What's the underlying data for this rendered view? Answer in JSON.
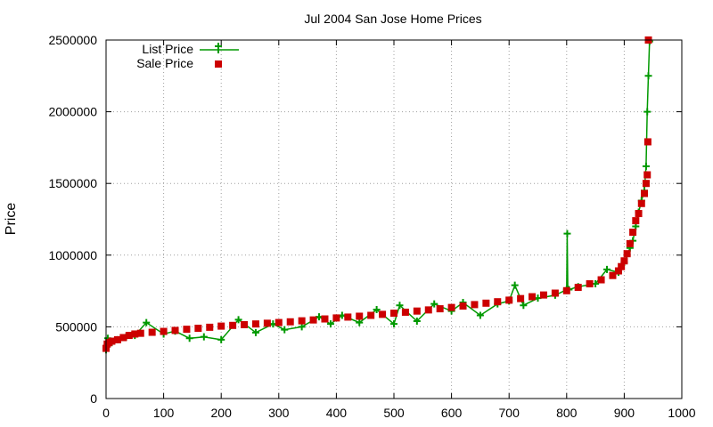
{
  "chart_data": {
    "type": "scatter",
    "title": "Jul 2004 San Jose Home Prices",
    "xlabel": "",
    "ylabel": "Price",
    "xlim": [
      0,
      1000
    ],
    "ylim": [
      0,
      2500000
    ],
    "x_ticks": [
      0,
      100,
      200,
      300,
      400,
      500,
      600,
      700,
      800,
      900,
      1000
    ],
    "y_ticks": [
      0,
      500000,
      1000000,
      1500000,
      2000000,
      2500000
    ],
    "grid": true,
    "legend_position": "top-left",
    "series": [
      {
        "name": "List Price",
        "style": "linespoints",
        "marker": "plus",
        "color": "#009900",
        "x": [
          0,
          3,
          10,
          20,
          35,
          50,
          70,
          100,
          120,
          145,
          170,
          200,
          230,
          260,
          290,
          310,
          340,
          370,
          390,
          410,
          440,
          470,
          500,
          510,
          540,
          570,
          600,
          620,
          650,
          680,
          700,
          710,
          725,
          750,
          780,
          800,
          801,
          802,
          803,
          804,
          820,
          850,
          870,
          890,
          900,
          910,
          915,
          920,
          925,
          930,
          935,
          938,
          940,
          942,
          944
        ],
        "y": [
          340000,
          420000,
          390000,
          410000,
          430000,
          440000,
          530000,
          450000,
          470000,
          420000,
          430000,
          410000,
          550000,
          460000,
          520000,
          480000,
          500000,
          570000,
          520000,
          580000,
          530000,
          620000,
          520000,
          650000,
          540000,
          660000,
          610000,
          670000,
          580000,
          660000,
          680000,
          790000,
          650000,
          700000,
          720000,
          760000,
          1150000,
          760000,
          760000,
          760000,
          780000,
          800000,
          900000,
          880000,
          950000,
          1050000,
          1100000,
          1200000,
          1300000,
          1380000,
          1450000,
          1620000,
          2000000,
          2250000,
          2490000
        ]
      },
      {
        "name": "Sale Price",
        "style": "points",
        "marker": "square",
        "color": "#cc0000",
        "x": [
          0,
          2,
          5,
          10,
          20,
          30,
          40,
          50,
          60,
          80,
          100,
          120,
          140,
          160,
          180,
          200,
          220,
          240,
          260,
          280,
          300,
          320,
          340,
          360,
          380,
          400,
          420,
          440,
          460,
          480,
          500,
          520,
          540,
          560,
          580,
          600,
          620,
          640,
          660,
          680,
          700,
          720,
          740,
          760,
          780,
          800,
          820,
          840,
          860,
          880,
          890,
          895,
          900,
          905,
          910,
          915,
          920,
          925,
          930,
          935,
          938,
          940,
          941,
          942
        ],
        "y": [
          350000,
          380000,
          390000,
          400000,
          410000,
          425000,
          440000,
          450000,
          455000,
          462000,
          468000,
          475000,
          483000,
          490000,
          497000,
          505000,
          510000,
          515000,
          520000,
          525000,
          530000,
          535000,
          542000,
          548000,
          555000,
          562000,
          568000,
          574000,
          580000,
          587000,
          595000,
          602000,
          610000,
          618000,
          626000,
          635000,
          645000,
          655000,
          665000,
          675000,
          686000,
          697000,
          710000,
          722000,
          735000,
          752000,
          775000,
          800000,
          828000,
          858000,
          890000,
          920000,
          960000,
          1010000,
          1080000,
          1160000,
          1240000,
          1290000,
          1360000,
          1430000,
          1500000,
          1560000,
          1790000,
          2500000
        ]
      }
    ]
  }
}
